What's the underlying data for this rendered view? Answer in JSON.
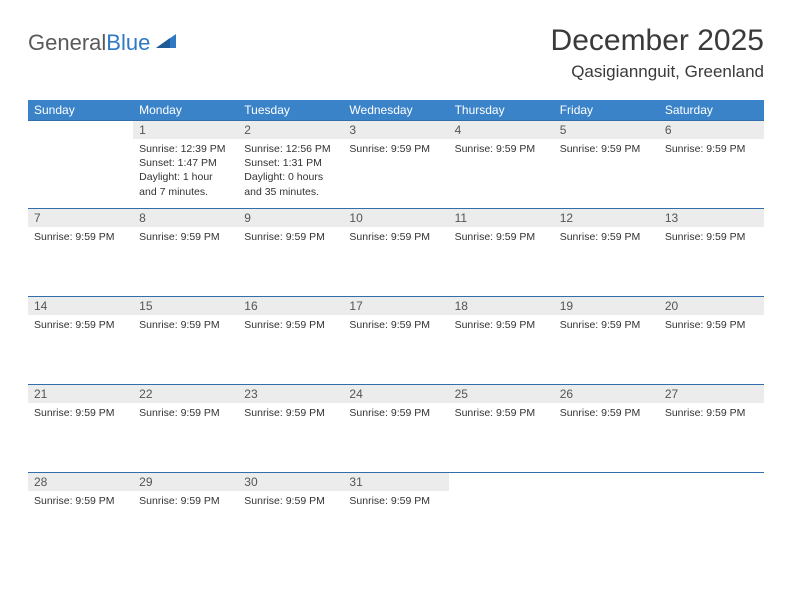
{
  "brand": {
    "part1": "General",
    "part2": "Blue"
  },
  "title": "December 2025",
  "location": "Qasigiannguit, Greenland",
  "colors": {
    "header_bg": "#3a83c9",
    "header_text": "#ffffff",
    "row_border": "#2f6fab",
    "daynum_bg": "#ececec",
    "text": "#333333",
    "brand_gray": "#5a5a5a",
    "brand_blue": "#2f78c4",
    "page_bg": "#ffffff"
  },
  "day_headers": [
    "Sunday",
    "Monday",
    "Tuesday",
    "Wednesday",
    "Thursday",
    "Friday",
    "Saturday"
  ],
  "weeks": [
    [
      {
        "num": "",
        "lines": []
      },
      {
        "num": "1",
        "lines": [
          "Sunrise: 12:39 PM",
          "Sunset: 1:47 PM",
          "Daylight: 1 hour and 7 minutes."
        ]
      },
      {
        "num": "2",
        "lines": [
          "Sunrise: 12:56 PM",
          "Sunset: 1:31 PM",
          "Daylight: 0 hours and 35 minutes."
        ]
      },
      {
        "num": "3",
        "lines": [
          "Sunrise: 9:59 PM"
        ]
      },
      {
        "num": "4",
        "lines": [
          "Sunrise: 9:59 PM"
        ]
      },
      {
        "num": "5",
        "lines": [
          "Sunrise: 9:59 PM"
        ]
      },
      {
        "num": "6",
        "lines": [
          "Sunrise: 9:59 PM"
        ]
      }
    ],
    [
      {
        "num": "7",
        "lines": [
          "Sunrise: 9:59 PM"
        ]
      },
      {
        "num": "8",
        "lines": [
          "Sunrise: 9:59 PM"
        ]
      },
      {
        "num": "9",
        "lines": [
          "Sunrise: 9:59 PM"
        ]
      },
      {
        "num": "10",
        "lines": [
          "Sunrise: 9:59 PM"
        ]
      },
      {
        "num": "11",
        "lines": [
          "Sunrise: 9:59 PM"
        ]
      },
      {
        "num": "12",
        "lines": [
          "Sunrise: 9:59 PM"
        ]
      },
      {
        "num": "13",
        "lines": [
          "Sunrise: 9:59 PM"
        ]
      }
    ],
    [
      {
        "num": "14",
        "lines": [
          "Sunrise: 9:59 PM"
        ]
      },
      {
        "num": "15",
        "lines": [
          "Sunrise: 9:59 PM"
        ]
      },
      {
        "num": "16",
        "lines": [
          "Sunrise: 9:59 PM"
        ]
      },
      {
        "num": "17",
        "lines": [
          "Sunrise: 9:59 PM"
        ]
      },
      {
        "num": "18",
        "lines": [
          "Sunrise: 9:59 PM"
        ]
      },
      {
        "num": "19",
        "lines": [
          "Sunrise: 9:59 PM"
        ]
      },
      {
        "num": "20",
        "lines": [
          "Sunrise: 9:59 PM"
        ]
      }
    ],
    [
      {
        "num": "21",
        "lines": [
          "Sunrise: 9:59 PM"
        ]
      },
      {
        "num": "22",
        "lines": [
          "Sunrise: 9:59 PM"
        ]
      },
      {
        "num": "23",
        "lines": [
          "Sunrise: 9:59 PM"
        ]
      },
      {
        "num": "24",
        "lines": [
          "Sunrise: 9:59 PM"
        ]
      },
      {
        "num": "25",
        "lines": [
          "Sunrise: 9:59 PM"
        ]
      },
      {
        "num": "26",
        "lines": [
          "Sunrise: 9:59 PM"
        ]
      },
      {
        "num": "27",
        "lines": [
          "Sunrise: 9:59 PM"
        ]
      }
    ],
    [
      {
        "num": "28",
        "lines": [
          "Sunrise: 9:59 PM"
        ]
      },
      {
        "num": "29",
        "lines": [
          "Sunrise: 9:59 PM"
        ]
      },
      {
        "num": "30",
        "lines": [
          "Sunrise: 9:59 PM"
        ]
      },
      {
        "num": "31",
        "lines": [
          "Sunrise: 9:59 PM"
        ]
      },
      {
        "num": "",
        "lines": []
      },
      {
        "num": "",
        "lines": []
      },
      {
        "num": "",
        "lines": []
      }
    ]
  ]
}
